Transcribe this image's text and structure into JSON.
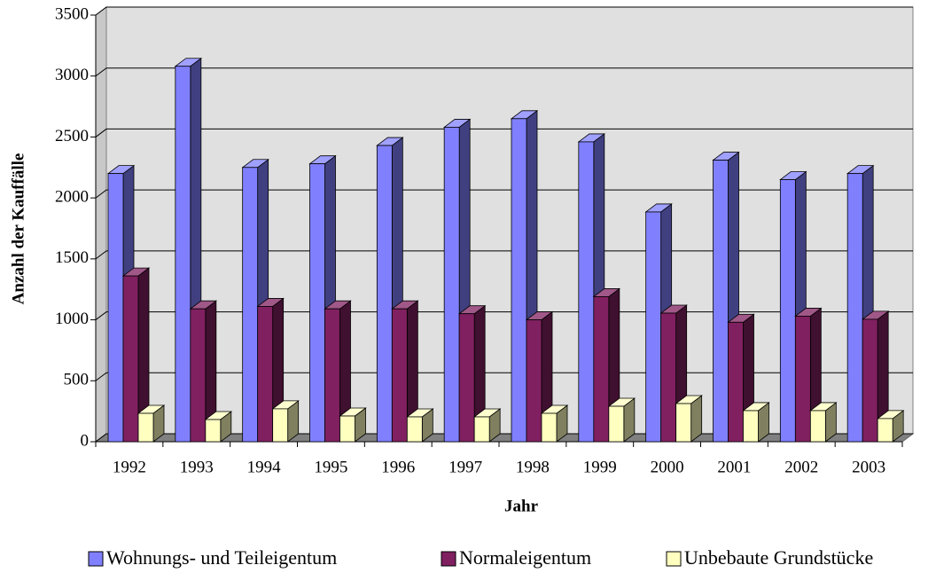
{
  "chart_data": {
    "type": "bar3d",
    "x_label": "Jahr",
    "y_label": "Anzahl der Kauffälle",
    "categories": [
      "1992",
      "1993",
      "1994",
      "1995",
      "1996",
      "1997",
      "1998",
      "1999",
      "2000",
      "2001",
      "2002",
      "2003"
    ],
    "series": [
      {
        "name": "Wohnungs- und Teileigentum",
        "color": "#8080ff",
        "values": [
          2200,
          3080,
          2250,
          2280,
          2430,
          2580,
          2650,
          2460,
          1885,
          2310,
          2150,
          2200
        ]
      },
      {
        "name": "Normaleigentum",
        "color": "#802060",
        "values": [
          1360,
          1090,
          1110,
          1090,
          1090,
          1050,
          1000,
          1190,
          1055,
          980,
          1030,
          1005
        ]
      },
      {
        "name": "Unbebaute Grundstücke",
        "color": "#ffffc0",
        "values": [
          233,
          182,
          270,
          211,
          204,
          204,
          233,
          291,
          313,
          255,
          255,
          190
        ]
      }
    ],
    "ylim": [
      0,
      3500
    ],
    "yticks": [
      0,
      500,
      1000,
      1500,
      2000,
      2500,
      3000,
      3500
    ],
    "grid": true,
    "legend": "bottom"
  }
}
